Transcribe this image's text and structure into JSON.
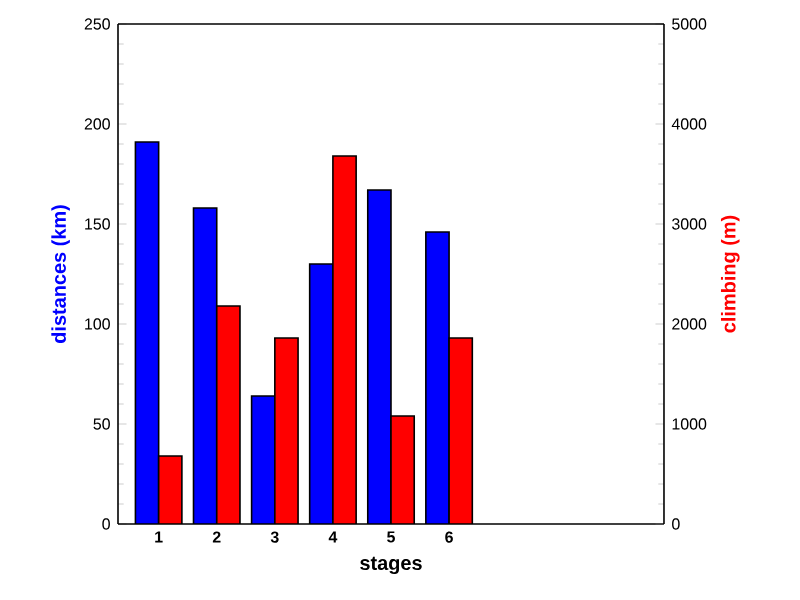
{
  "chart_data": {
    "type": "bar",
    "xlabel": "stages",
    "ylabel": "distances (km)",
    "y2label": "climbing (m)",
    "x": [
      1,
      2,
      3,
      4,
      5,
      6
    ],
    "xlim": [
      0.3,
      9.7
    ],
    "xticks": [
      1,
      2,
      3,
      4,
      5,
      6
    ],
    "ylim": [
      0,
      250
    ],
    "yticks": [
      0,
      50,
      100,
      150,
      200,
      250
    ],
    "y2lim": [
      0,
      5000
    ],
    "y2ticks": [
      0,
      1000,
      2000,
      3000,
      4000,
      5000
    ],
    "series": [
      {
        "color": "#0000ff",
        "values": [
          191,
          158,
          64,
          130,
          167,
          146
        ]
      },
      {
        "color": "#ff0000",
        "axis": "y2",
        "values": [
          680,
          2180,
          1860,
          3680,
          1080,
          1860
        ]
      }
    ]
  }
}
